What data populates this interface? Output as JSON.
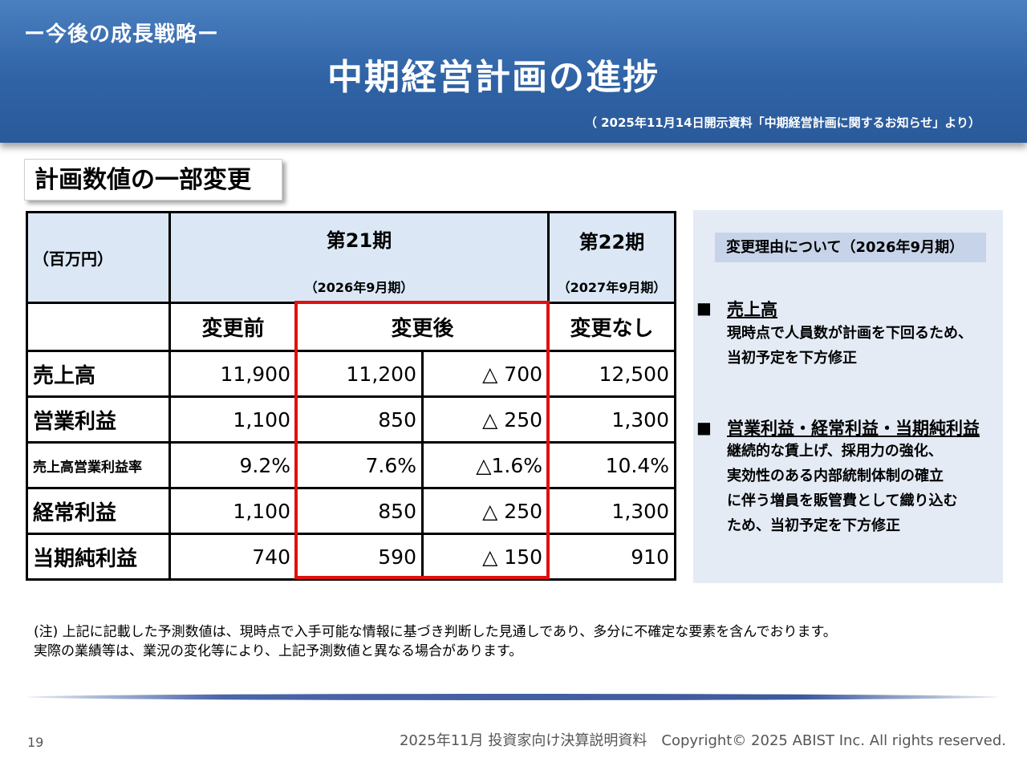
{
  "header": {
    "section_label": "ー今後の成長戦略ー",
    "title": "中期経営計画の進捗",
    "source_note": "（ 2025年11月14日開示資料「中期経営計画に関するお知らせ」より）"
  },
  "subtitle": "計画数値の一部変更",
  "table": {
    "unit": "（百万円）",
    "period21_name": "第21期",
    "period21_sub": "（2026年9月期）",
    "period22_name": "第22期",
    "period22_sub": "（2027年9月期）",
    "col_before": "変更前",
    "col_after": "変更後",
    "col_nochange": "変更なし",
    "rows": [
      {
        "label": "売上高",
        "before": "11,900",
        "after": "11,200",
        "diff": "△ 700",
        "next": "12,500"
      },
      {
        "label": "営業利益",
        "before": "1,100",
        "after": "850",
        "diff": "△ 250",
        "next": "1,300"
      },
      {
        "label": "売上高営業利益率",
        "before": "9.2%",
        "after": "7.6%",
        "diff": "△1.6%",
        "next": "10.4%"
      },
      {
        "label": "経常利益",
        "before": "1,100",
        "after": "850",
        "diff": "△ 250",
        "next": "1,300"
      },
      {
        "label": "当期純利益",
        "before": "740",
        "after": "590",
        "diff": "△ 150",
        "next": "910"
      }
    ]
  },
  "reason": {
    "title": "変更理由について（2026年9月期）",
    "bullet": "■",
    "item1_head": "売上高",
    "item1_lines": [
      "現時点で人員数が計画を下回るため、",
      "当初予定を下方修正"
    ],
    "item2_head": "営業利益・経常利益・当期純利益",
    "item2_lines": [
      "継続的な賃上げ、採用力の強化、",
      "実効性のある内部統制体制の確立",
      "に伴う増員を販管費として織り込む",
      "ため、当初予定を下方修正"
    ]
  },
  "footnote": [
    "(注) 上記に記載した予測数値は、現時点で入手可能な情報に基づき判断した見通しであり、多分に不確定な要素を含んでおります。",
    "実際の業績等は、業況の変化等により、上記予測数値と異なる場合があります。"
  ],
  "footer": {
    "page_number": "19",
    "right_text": "2025年11月 投資家向け決算説明資料　Copyright© 2025 ABIST Inc. All rights reserved."
  }
}
